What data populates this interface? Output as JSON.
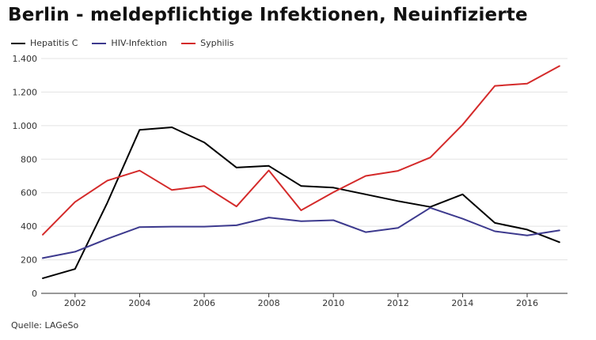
{
  "chart_data": {
    "type": "line",
    "title": "Berlin - meldepflichtige Infektionen, Neuinfizierte",
    "xlabel": "",
    "ylabel": "",
    "x": [
      2001,
      2002,
      2003,
      2004,
      2005,
      2006,
      2007,
      2008,
      2009,
      2010,
      2011,
      2012,
      2013,
      2014,
      2015,
      2016,
      2017
    ],
    "xlim": [
      2000.95,
      2017.25
    ],
    "ylim": [
      0,
      1400
    ],
    "x_ticks": [
      2002,
      2004,
      2006,
      2008,
      2010,
      2012,
      2014,
      2016
    ],
    "y_ticks": [
      0,
      200,
      400,
      600,
      800,
      1000,
      1200,
      1400
    ],
    "y_tick_labels": [
      "0",
      "200",
      "400",
      "600",
      "800",
      "1.000",
      "1.200",
      "1.400"
    ],
    "grid": "horizontal",
    "legend": "top-left",
    "series": [
      {
        "name": "Hepatitis C",
        "color": "#000000",
        "values": [
          90,
          145,
          540,
          975,
          990,
          900,
          750,
          760,
          640,
          630,
          590,
          550,
          515,
          590,
          420,
          380,
          305
        ]
      },
      {
        "name": "HIV-Infektion",
        "color": "#3d3a8e",
        "values": [
          210,
          248,
          325,
          395,
          398,
          398,
          406,
          452,
          430,
          436,
          365,
          390,
          510,
          445,
          370,
          345,
          375
        ]
      },
      {
        "name": "Syphilis",
        "color": "#d42a2a",
        "values": [
          350,
          545,
          672,
          732,
          616,
          640,
          518,
          733,
          495,
          603,
          700,
          730,
          810,
          1005,
          1237,
          1250,
          1355
        ]
      }
    ]
  },
  "source": "Quelle: LAGeSo"
}
